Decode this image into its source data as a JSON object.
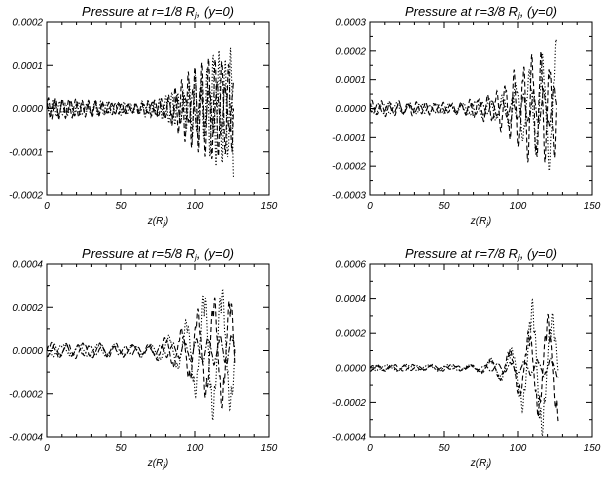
{
  "chart_data": [
    {
      "type": "line",
      "title": "Pressure at r=1/8 R",
      "title_suffix": ", (y=0)",
      "xlabel": "z(R",
      "xlabel_suffix": ")",
      "ylabel": "",
      "xlim": [
        0,
        150
      ],
      "ylim": [
        -0.0002,
        0.0002
      ],
      "xticks": [
        0,
        50,
        100,
        150
      ],
      "xtick_labels": [
        "0",
        "50",
        "100",
        "150"
      ],
      "yticks": [
        0.0002,
        0.0001,
        0.0,
        -0.0001,
        -0.0002
      ],
      "ytick_labels": [
        "0.0002",
        "0.0001",
        "0.0000",
        "-0.0001",
        "-0.0002"
      ],
      "series": [
        {
          "style": "dashed",
          "amplitudes": [
            [
              0,
              2.5e-05
            ],
            [
              60,
              1.5e-05
            ],
            [
              80,
              3e-05
            ],
            [
              95,
              9e-05
            ],
            [
              110,
              0.00012
            ],
            [
              125,
              0.0001
            ]
          ],
          "period": 4.5,
          "phase": 0.0
        },
        {
          "style": "dotted",
          "amplitudes": [
            [
              0,
              2e-05
            ],
            [
              60,
              1.5e-05
            ],
            [
              80,
              3e-05
            ],
            [
              95,
              6e-05
            ],
            [
              110,
              0.00012
            ],
            [
              125,
              0.00017
            ]
          ],
          "period": 4.0,
          "phase": 1.3
        },
        {
          "style": "dashdot",
          "amplitudes": [
            [
              0,
              2e-05
            ],
            [
              60,
              1e-05
            ],
            [
              80,
              2e-05
            ],
            [
              100,
              5e-05
            ],
            [
              125,
              7e-05
            ]
          ],
          "period": 5.5,
          "phase": 2.2
        }
      ],
      "x_end": 126
    },
    {
      "type": "line",
      "title": "Pressure at r=3/8 R",
      "title_suffix": ", (y=0)",
      "xlabel": "z(R",
      "xlabel_suffix": ")",
      "ylabel": "",
      "xlim": [
        0,
        150
      ],
      "ylim": [
        -0.0003,
        0.0003
      ],
      "xticks": [
        0,
        50,
        100,
        150
      ],
      "xtick_labels": [
        "0",
        "50",
        "100",
        "150"
      ],
      "yticks": [
        0.0003,
        0.0002,
        0.0001,
        0.0,
        -0.0001,
        -0.0002,
        -0.0003
      ],
      "ytick_labels": [
        "0.0003",
        "0.0002",
        "0.0001",
        "0.0000",
        "-0.0001",
        "-0.0002",
        "-0.0003"
      ],
      "series": [
        {
          "style": "dashed",
          "amplitudes": [
            [
              0,
              3e-05
            ],
            [
              60,
              2e-05
            ],
            [
              85,
              6e-05
            ],
            [
              100,
              0.00015
            ],
            [
              112,
              0.00022
            ],
            [
              122,
              0.00018
            ]
          ],
          "period": 6.0,
          "phase": 0.0
        },
        {
          "style": "dotted",
          "amplitudes": [
            [
              0,
              2e-05
            ],
            [
              60,
              2e-05
            ],
            [
              90,
              5e-05
            ],
            [
              110,
              0.00015
            ],
            [
              125,
              0.00024
            ]
          ],
          "period": 9.0,
          "phase": 1.8
        },
        {
          "style": "dashdot",
          "amplitudes": [
            [
              0,
              2e-05
            ],
            [
              60,
              1.5e-05
            ],
            [
              90,
              3e-05
            ],
            [
              110,
              6e-05
            ],
            [
              125,
              8e-05
            ]
          ],
          "period": 7.0,
          "phase": 3.0
        }
      ],
      "x_end": 126
    },
    {
      "type": "line",
      "title": "Pressure at r=5/8 R",
      "title_suffix": ", (y=0)",
      "xlabel": "z(R",
      "xlabel_suffix": ")",
      "ylabel": "",
      "xlim": [
        0,
        150
      ],
      "ylim": [
        -0.0004,
        0.0004
      ],
      "xticks": [
        0,
        50,
        100,
        150
      ],
      "xtick_labels": [
        "0",
        "50",
        "100",
        "150"
      ],
      "yticks": [
        0.0004,
        0.0002,
        0.0,
        -0.0002,
        -0.0004
      ],
      "ytick_labels": [
        "0.0004",
        "0.0002",
        "0.0000",
        "-0.0002",
        "-0.0004"
      ],
      "series": [
        {
          "style": "dashed",
          "amplitudes": [
            [
              0,
              4e-05
            ],
            [
              70,
              3e-05
            ],
            [
              90,
              0.0001
            ],
            [
              105,
              0.00022
            ],
            [
              115,
              0.00027
            ],
            [
              125,
              0.00026
            ]
          ],
          "period": 11.0,
          "phase": 0.0
        },
        {
          "style": "dotted",
          "amplitudes": [
            [
              0,
              3e-05
            ],
            [
              70,
              3e-05
            ],
            [
              90,
              0.0001
            ],
            [
              110,
              0.00033
            ],
            [
              125,
              0.00028
            ]
          ],
          "period": 12.0,
          "phase": 2.6
        },
        {
          "style": "dashdot",
          "amplitudes": [
            [
              0,
              3e-05
            ],
            [
              70,
              2e-05
            ],
            [
              95,
              5e-05
            ],
            [
              125,
              8e-05
            ]
          ],
          "period": 8.0,
          "phase": 4.0
        }
      ],
      "x_end": 127
    },
    {
      "type": "line",
      "title": "Pressure at r=7/8 R",
      "title_suffix": ", (y=0)",
      "xlabel": "z(R",
      "xlabel_suffix": ")",
      "ylabel": "",
      "xlim": [
        0,
        150
      ],
      "ylim": [
        -0.0004,
        0.0006
      ],
      "xticks": [
        0,
        50,
        100,
        150
      ],
      "xtick_labels": [
        "0",
        "50",
        "100",
        "150"
      ],
      "yticks": [
        0.0006,
        0.0004,
        0.0002,
        0.0,
        -0.0002,
        -0.0004
      ],
      "ytick_labels": [
        "0.0006",
        "0.0004",
        "0.0002",
        "0.0000",
        "-0.0002",
        "-0.0004"
      ],
      "series": [
        {
          "style": "dashed",
          "amplitudes": [
            [
              0,
              2e-05
            ],
            [
              70,
              2e-05
            ],
            [
              90,
              8e-05
            ],
            [
              105,
              0.0002
            ],
            [
              115,
              0.0003
            ],
            [
              125,
              0.00032
            ]
          ],
          "period": 13.0,
          "phase": 0.0
        },
        {
          "style": "dotted",
          "amplitudes": [
            [
              0,
              2e-05
            ],
            [
              70,
              2e-05
            ],
            [
              95,
              0.0001
            ],
            [
              112,
              0.00045
            ],
            [
              125,
              0.0003
            ]
          ],
          "period": 14.0,
          "phase": 2.8
        },
        {
          "style": "dashdot",
          "amplitudes": [
            [
              0,
              2e-05
            ],
            [
              70,
              1e-05
            ],
            [
              100,
              4e-05
            ],
            [
              125,
              6e-05
            ]
          ],
          "period": 9.0,
          "phase": 4.2
        }
      ],
      "x_end": 127
    }
  ]
}
